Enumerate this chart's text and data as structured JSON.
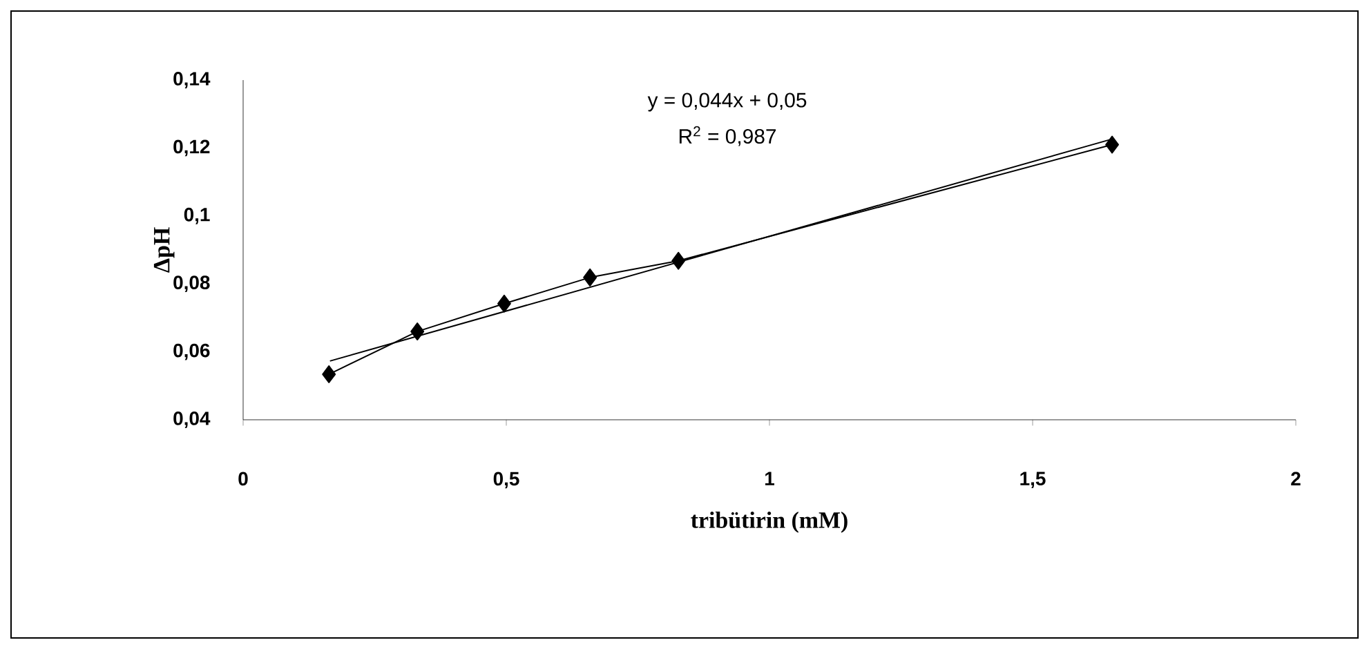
{
  "chart_data": {
    "type": "line",
    "xlabel": "tribütirin (mM)",
    "ylabel": "ΔpH",
    "annotations": [
      "y = 0,044x + 0,05",
      "R$^{2}$ = 0,987"
    ],
    "xlim": [
      0,
      2
    ],
    "ylim": [
      0.04,
      0.14
    ],
    "xticks": [
      {
        "value": 0,
        "label": "0"
      },
      {
        "value": 0.5,
        "label": "0,5"
      },
      {
        "value": 1,
        "label": "1"
      },
      {
        "value": 1.5,
        "label": "1,5"
      },
      {
        "value": 2,
        "label": "2"
      }
    ],
    "yticks": [
      {
        "value": 0.04,
        "label": "0,04"
      },
      {
        "value": 0.06,
        "label": "0,06"
      },
      {
        "value": 0.08,
        "label": "0,08"
      },
      {
        "value": 0.1,
        "label": "0,1"
      },
      {
        "value": 0.12,
        "label": "0,12"
      },
      {
        "value": 0.14,
        "label": "0,14"
      }
    ],
    "grid": false,
    "series": [
      {
        "color": "#000000",
        "marker": "diamond",
        "x": [
          0.163,
          0.331,
          0.496,
          0.659,
          0.827,
          1.651
        ],
        "values": [
          0.0534,
          0.066,
          0.0742,
          0.0819,
          0.0868,
          0.121
        ]
      },
      {
        "type": "line",
        "color": "#000000",
        "marker": "none",
        "x": [
          0.165,
          1.65
        ],
        "values": [
          0.0573,
          0.1226
        ]
      }
    ]
  }
}
